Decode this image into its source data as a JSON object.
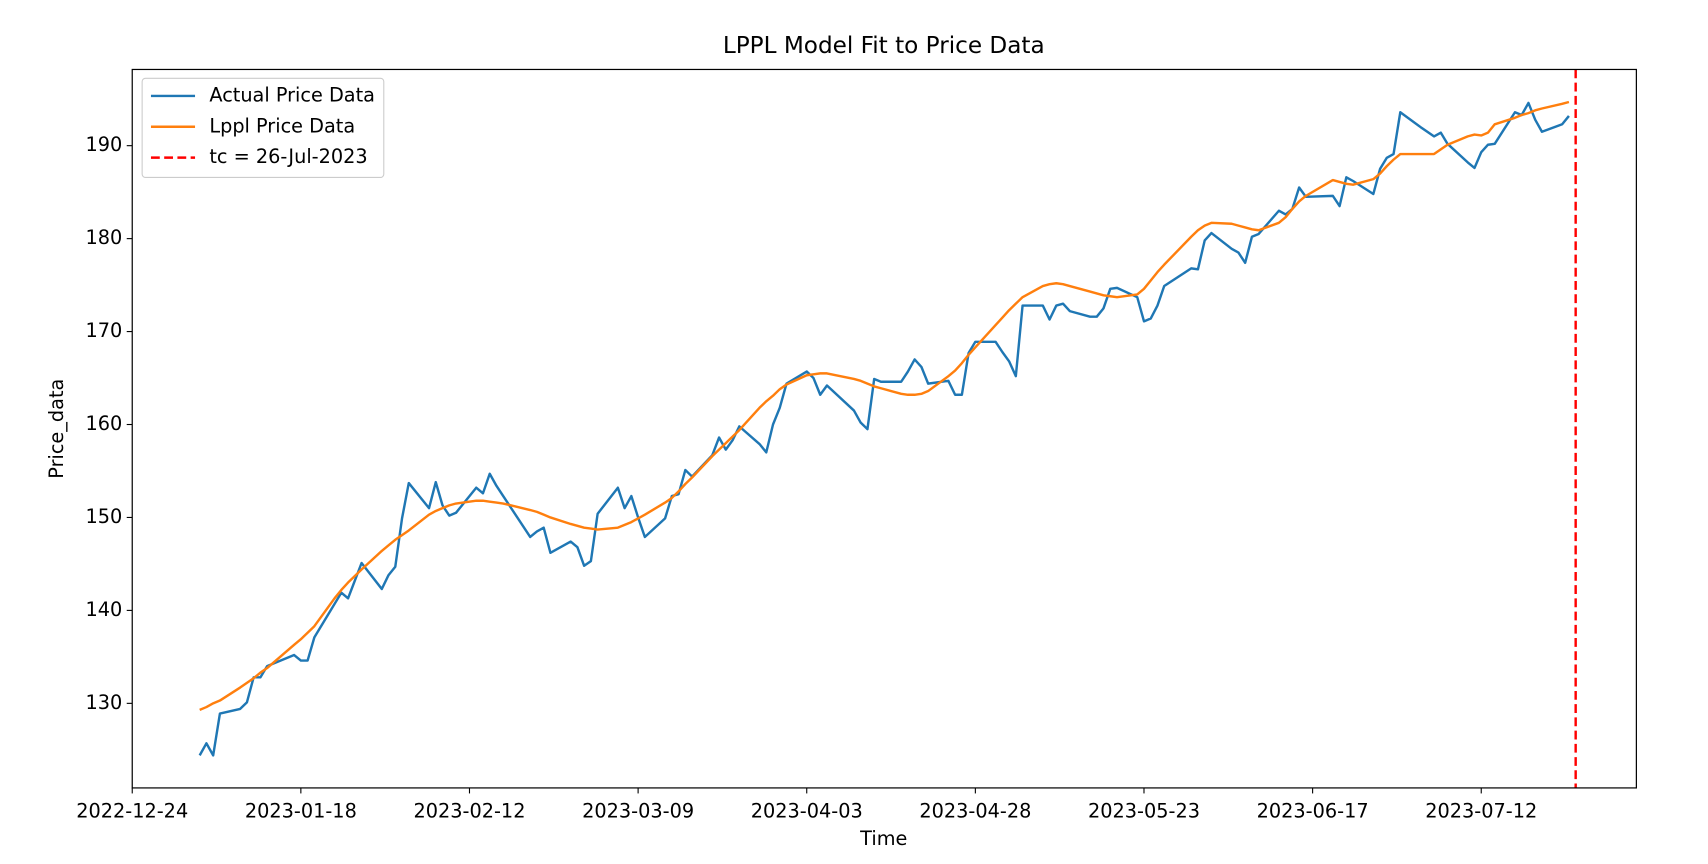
{
  "chart_data": {
    "type": "line",
    "title": "LPPL Model Fit to Price Data",
    "xlabel": "Time",
    "ylabel": "Price_data",
    "x": [
      "2023-01-03",
      "2023-01-04",
      "2023-01-05",
      "2023-01-06",
      "2023-01-09",
      "2023-01-10",
      "2023-01-11",
      "2023-01-12",
      "2023-01-13",
      "2023-01-17",
      "2023-01-18",
      "2023-01-19",
      "2023-01-20",
      "2023-01-23",
      "2023-01-24",
      "2023-01-25",
      "2023-01-26",
      "2023-01-27",
      "2023-01-30",
      "2023-01-31",
      "2023-02-01",
      "2023-02-02",
      "2023-02-03",
      "2023-02-06",
      "2023-02-07",
      "2023-02-08",
      "2023-02-09",
      "2023-02-10",
      "2023-02-13",
      "2023-02-14",
      "2023-02-15",
      "2023-02-16",
      "2023-02-17",
      "2023-02-21",
      "2023-02-22",
      "2023-02-23",
      "2023-02-24",
      "2023-02-27",
      "2023-02-28",
      "2023-03-01",
      "2023-03-02",
      "2023-03-03",
      "2023-03-06",
      "2023-03-07",
      "2023-03-08",
      "2023-03-09",
      "2023-03-10",
      "2023-03-13",
      "2023-03-14",
      "2023-03-15",
      "2023-03-16",
      "2023-03-17",
      "2023-03-20",
      "2023-03-21",
      "2023-03-22",
      "2023-03-23",
      "2023-03-24",
      "2023-03-27",
      "2023-03-28",
      "2023-03-29",
      "2023-03-30",
      "2023-03-31",
      "2023-04-03",
      "2023-04-04",
      "2023-04-05",
      "2023-04-06",
      "2023-04-10",
      "2023-04-11",
      "2023-04-12",
      "2023-04-13",
      "2023-04-14",
      "2023-04-17",
      "2023-04-18",
      "2023-04-19",
      "2023-04-20",
      "2023-04-21",
      "2023-04-24",
      "2023-04-25",
      "2023-04-26",
      "2023-04-27",
      "2023-04-28",
      "2023-05-01",
      "2023-05-02",
      "2023-05-03",
      "2023-05-04",
      "2023-05-05",
      "2023-05-08",
      "2023-05-09",
      "2023-05-10",
      "2023-05-11",
      "2023-05-12",
      "2023-05-15",
      "2023-05-16",
      "2023-05-17",
      "2023-05-18",
      "2023-05-19",
      "2023-05-22",
      "2023-05-23",
      "2023-05-24",
      "2023-05-25",
      "2023-05-26",
      "2023-05-30",
      "2023-05-31",
      "2023-06-01",
      "2023-06-02",
      "2023-06-05",
      "2023-06-06",
      "2023-06-07",
      "2023-06-08",
      "2023-06-09",
      "2023-06-12",
      "2023-06-13",
      "2023-06-14",
      "2023-06-15",
      "2023-06-16",
      "2023-06-20",
      "2023-06-21",
      "2023-06-22",
      "2023-06-23",
      "2023-06-26",
      "2023-06-27",
      "2023-06-28",
      "2023-06-29",
      "2023-06-30",
      "2023-07-03",
      "2023-07-05",
      "2023-07-06",
      "2023-07-07",
      "2023-07-10",
      "2023-07-11",
      "2023-07-12",
      "2023-07-13",
      "2023-07-14",
      "2023-07-17",
      "2023-07-18",
      "2023-07-19",
      "2023-07-20",
      "2023-07-21",
      "2023-07-24",
      "2023-07-25"
    ],
    "series": [
      {
        "name": "Actual Price Data",
        "color": "#1f77b4",
        "values": [
          124.4,
          125.7,
          124.4,
          128.9,
          129.4,
          130.1,
          132.8,
          132.8,
          134.0,
          135.2,
          134.6,
          134.6,
          137.1,
          140.7,
          141.9,
          141.3,
          143.2,
          145.1,
          142.3,
          143.8,
          144.7,
          149.9,
          153.7,
          151.0,
          153.8,
          151.3,
          150.2,
          150.5,
          153.2,
          152.6,
          154.7,
          153.4,
          152.3,
          147.9,
          148.5,
          148.9,
          146.2,
          147.4,
          146.8,
          144.8,
          145.3,
          150.4,
          153.2,
          151.0,
          152.3,
          150.0,
          147.9,
          149.9,
          152.3,
          152.5,
          155.1,
          154.4,
          156.7,
          158.6,
          157.3,
          158.3,
          159.8,
          157.9,
          157.0,
          160.0,
          161.8,
          164.4,
          165.7,
          165.0,
          163.2,
          164.2,
          161.5,
          160.2,
          159.5,
          164.9,
          164.6,
          164.6,
          165.7,
          167.0,
          166.2,
          164.4,
          164.7,
          163.2,
          163.2,
          167.7,
          168.9,
          168.9,
          167.8,
          166.8,
          165.2,
          172.8,
          172.8,
          171.3,
          172.8,
          173.0,
          172.2,
          171.6,
          171.6,
          172.5,
          174.6,
          174.7,
          173.7,
          171.1,
          171.4,
          172.8,
          174.9,
          176.8,
          176.7,
          179.8,
          180.6,
          178.9,
          178.5,
          177.4,
          180.2,
          180.5,
          183.0,
          182.6,
          183.2,
          185.5,
          184.5,
          184.6,
          183.5,
          186.6,
          186.2,
          184.8,
          187.5,
          188.7,
          189.1,
          193.6,
          192.0,
          191.0,
          191.4,
          190.2,
          188.2,
          187.6,
          189.3,
          190.1,
          190.2,
          193.6,
          193.3,
          194.6,
          192.8,
          191.5,
          192.3,
          193.2
        ]
      },
      {
        "name": "Lppl Price Data",
        "color": "#ff7f0e",
        "values": [
          129.3,
          129.6,
          130.0,
          130.3,
          131.7,
          132.2,
          132.7,
          133.3,
          133.8,
          136.3,
          136.9,
          137.6,
          138.3,
          141.3,
          142.2,
          143.0,
          143.7,
          144.4,
          146.4,
          147.0,
          147.6,
          148.1,
          148.6,
          150.3,
          150.7,
          151.0,
          151.3,
          151.5,
          151.8,
          151.8,
          151.7,
          151.6,
          151.5,
          150.8,
          150.6,
          150.3,
          150.0,
          149.3,
          149.1,
          148.9,
          148.8,
          148.7,
          148.9,
          149.2,
          149.5,
          149.9,
          150.3,
          151.6,
          152.1,
          152.8,
          153.6,
          154.3,
          156.6,
          157.3,
          158.0,
          158.7,
          159.4,
          161.8,
          162.5,
          163.1,
          163.8,
          164.3,
          165.3,
          165.4,
          165.5,
          165.5,
          164.9,
          164.7,
          164.4,
          164.1,
          163.9,
          163.3,
          163.2,
          163.2,
          163.3,
          163.6,
          165.2,
          165.8,
          166.6,
          167.5,
          168.3,
          170.7,
          171.5,
          172.3,
          173.0,
          173.7,
          174.9,
          175.1,
          175.2,
          175.1,
          174.9,
          174.3,
          174.1,
          173.9,
          173.8,
          173.7,
          174.0,
          174.6,
          175.5,
          176.4,
          177.2,
          180.2,
          180.9,
          181.4,
          181.7,
          181.6,
          181.4,
          181.2,
          181.0,
          180.9,
          181.7,
          182.3,
          183.2,
          184.0,
          184.6,
          186.3,
          186.1,
          185.9,
          185.8,
          186.4,
          187.0,
          187.8,
          188.5,
          189.1,
          189.1,
          189.1,
          189.6,
          190.1,
          191.0,
          191.2,
          191.1,
          191.4,
          192.3,
          193.0,
          193.3,
          193.5,
          193.8,
          194.0,
          194.5,
          194.7
        ]
      }
    ],
    "vlines": [
      {
        "name": "tc = 26-Jul-2023",
        "x": "2023-07-26",
        "color": "#ff0000",
        "style": "dashed"
      }
    ],
    "xlim": [
      "2022-12-24",
      "2023-08-04"
    ],
    "xticks": [
      "2022-12-24",
      "2023-01-18",
      "2023-02-12",
      "2023-03-09",
      "2023-04-03",
      "2023-04-28",
      "2023-05-23",
      "2023-06-17",
      "2023-07-12"
    ],
    "ylim": [
      120.9,
      198.2
    ],
    "yticks": [
      130,
      140,
      150,
      160,
      170,
      180,
      190
    ],
    "legend": "upper left",
    "grid": false
  }
}
